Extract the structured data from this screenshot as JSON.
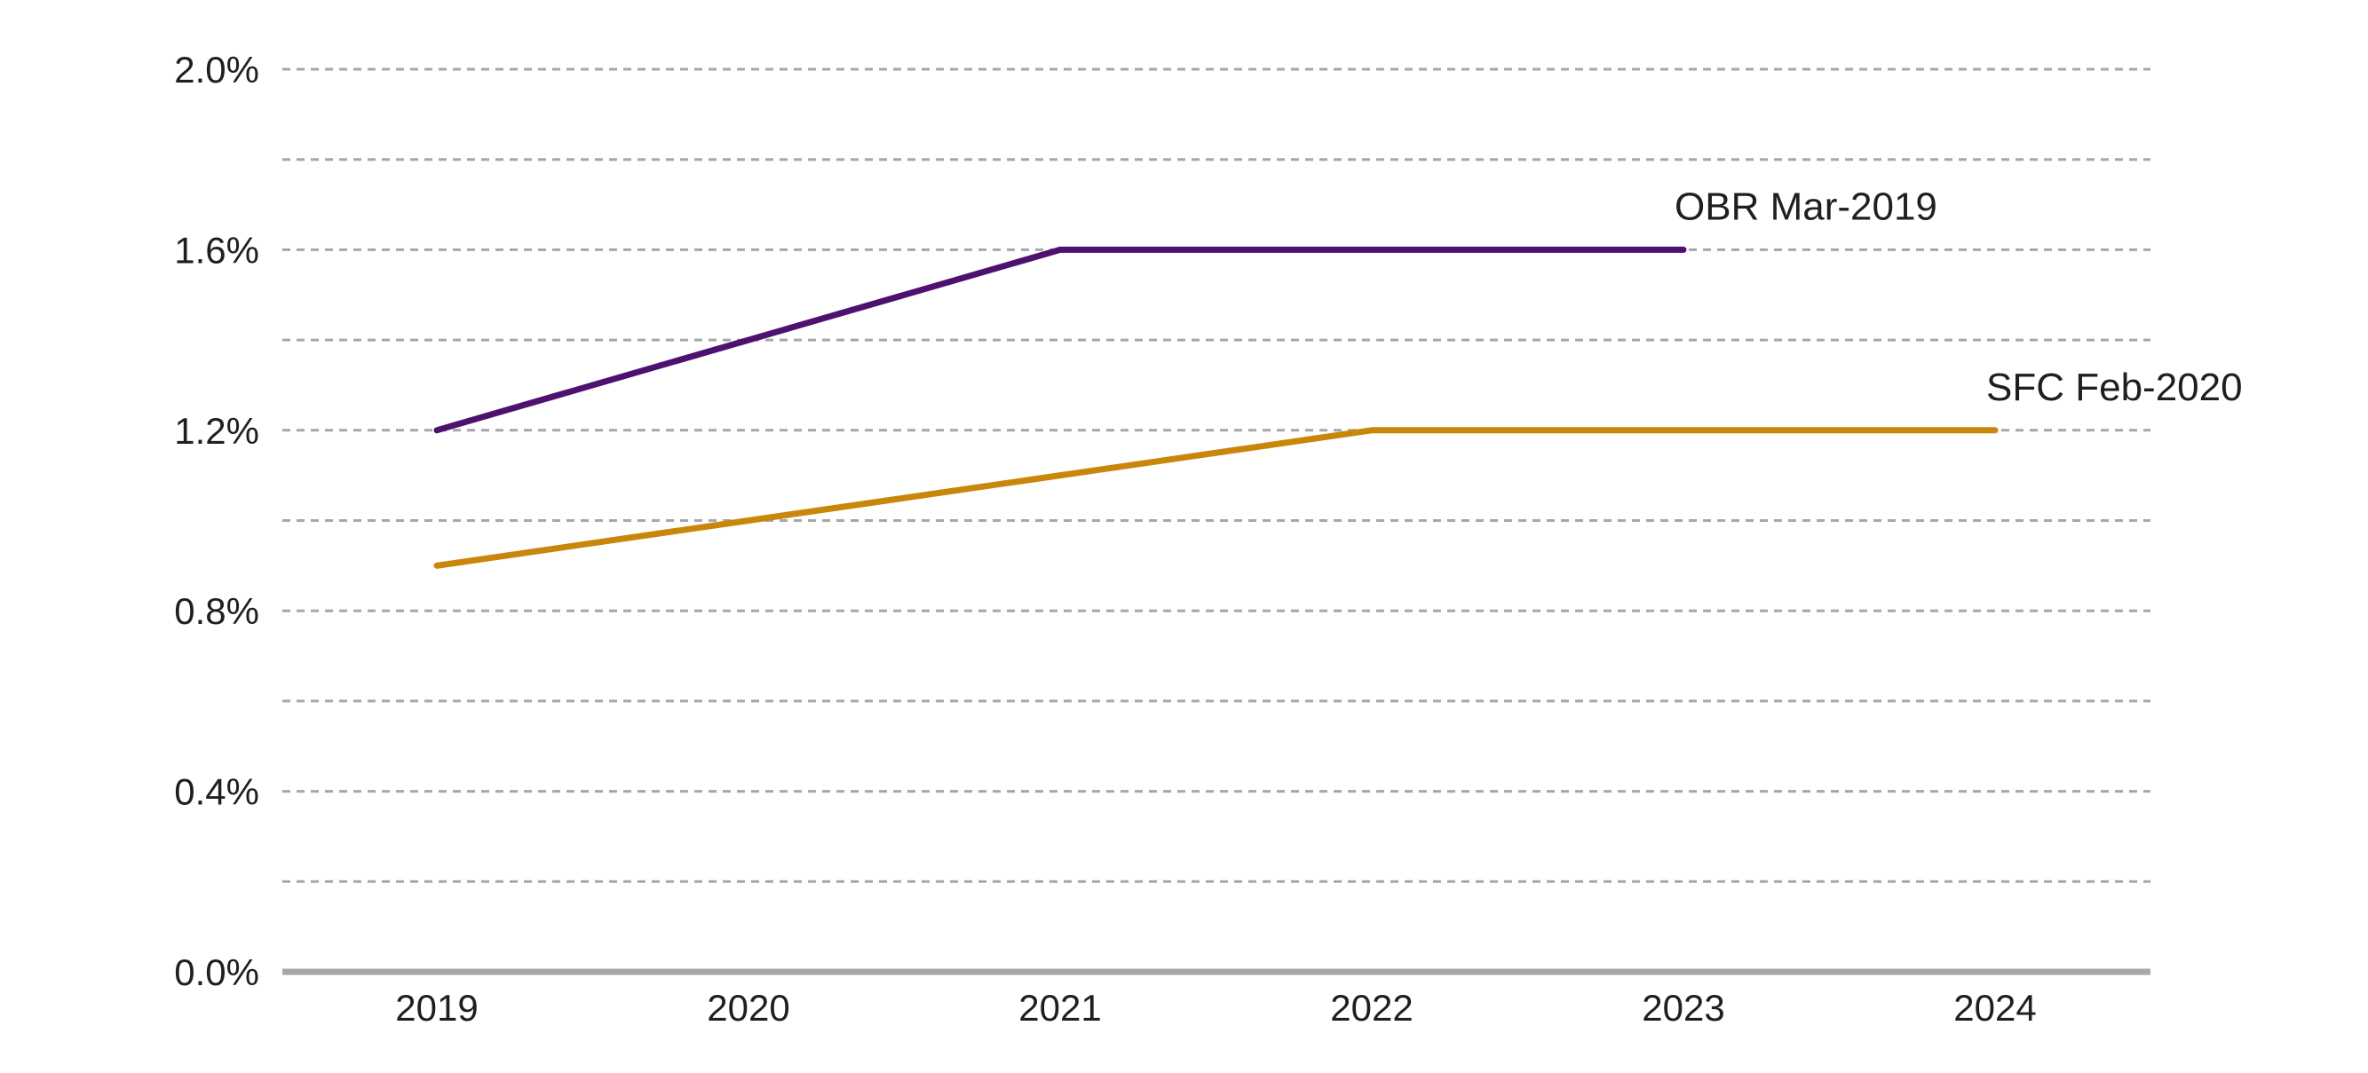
{
  "chart_data": {
    "type": "line",
    "title": "",
    "xlabel": "",
    "ylabel": "",
    "x": [
      "2019",
      "2020",
      "2021",
      "2022",
      "2023",
      "2024"
    ],
    "ylim": [
      0,
      2.0
    ],
    "y_ticks": [
      0,
      0.4,
      0.8,
      1.2,
      1.6,
      2.0
    ],
    "y_tick_labels": [
      "0.0%",
      "0.4%",
      "0.8%",
      "1.2%",
      "1.6%",
      "2.0%"
    ],
    "minor_gridlines": [
      0.2,
      0.6,
      1.0,
      1.4,
      1.8
    ],
    "grid": "horizontal dashed",
    "legend": "inline labels at line ends",
    "series": [
      {
        "name": "OBR Mar-2019",
        "color": "#4f1170",
        "values": [
          1.2,
          1.4,
          1.6,
          1.6,
          1.6,
          null
        ]
      },
      {
        "name": "SFC Feb-2020",
        "color": "#c8870a",
        "values": [
          0.9,
          1.0,
          1.1,
          1.2,
          1.2,
          1.2
        ]
      }
    ]
  }
}
